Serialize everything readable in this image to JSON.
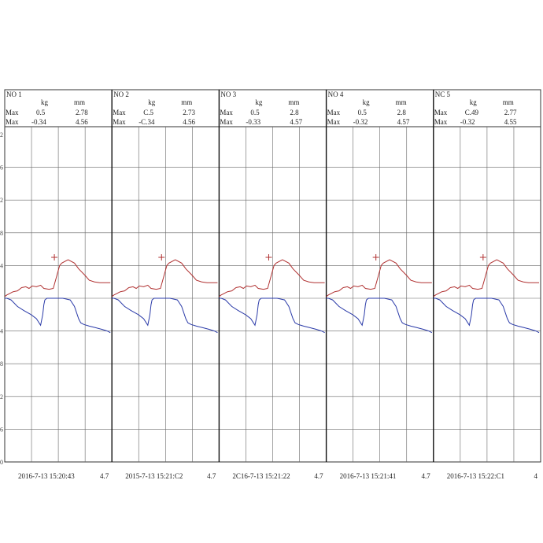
{
  "chart_data": {
    "type": "line",
    "col_headers": {
      "force_unit": "kg",
      "disp_unit": "mm"
    },
    "row_labels": {
      "max": "Max",
      "min": "Max"
    },
    "y_tick_labels": [
      "2",
      "6",
      "2",
      "8",
      "4",
      "",
      "4",
      "8",
      "2",
      "6",
      "0"
    ],
    "panels": [
      {
        "label": "NO 1",
        "max_kg": "0.5",
        "max_mm": "2.78",
        "min_kg": "-0.34",
        "min_mm": "4.56",
        "timestamp": "2016-7-13 15:20:43",
        "footer_value": "4.7"
      },
      {
        "label": "NO 2",
        "max_kg": "C.5",
        "max_mm": "2.73",
        "min_kg": "-C.34",
        "min_mm": "4.56",
        "timestamp": "2015-7-13 15:21:C2",
        "footer_value": "4.7"
      },
      {
        "label": "NO 3",
        "max_kg": "0.5",
        "max_mm": "2.8",
        "min_kg": "-0.33",
        "min_mm": "4.57",
        "timestamp": "2C16-7-13 15:21:22",
        "footer_value": "4.7"
      },
      {
        "label": "NO 4",
        "max_kg": "0.5",
        "max_mm": "2.8",
        "min_kg": "-0.32",
        "min_mm": "4.57",
        "timestamp": "2016-7-13 15:21:41",
        "footer_value": "4.7"
      },
      {
        "label": "NC 5",
        "max_kg": "C.49",
        "max_mm": "2.77",
        "min_kg": "-0.32",
        "min_mm": "4.55",
        "timestamp": "2016-7-13 15:22:C1",
        "footer_value": "4"
      }
    ],
    "series": [
      {
        "color": "#b03030",
        "x": [
          0,
          0.02,
          0.08,
          0.12,
          0.16,
          0.2,
          0.23,
          0.26,
          0.3,
          0.34,
          0.37,
          0.42,
          0.46,
          0.52,
          0.54,
          0.6,
          0.66,
          0.7,
          0.76,
          0.8,
          0.85,
          0.9,
          0.95,
          1
        ],
        "values": [
          0.02,
          0.04,
          0.08,
          0.09,
          0.13,
          0.14,
          0.12,
          0.15,
          0.14,
          0.16,
          0.12,
          0.11,
          0.12,
          0.4,
          0.43,
          0.47,
          0.43,
          0.36,
          0.28,
          0.22,
          0.2,
          0.19,
          0.19,
          0.19
        ]
      },
      {
        "color": "#2a3aa8",
        "x": [
          0,
          0.02,
          0.06,
          0.12,
          0.18,
          0.25,
          0.3,
          0.34,
          0.36,
          0.37,
          0.38,
          0.4,
          0.46,
          0.5,
          0.55,
          0.62,
          0.66,
          0.7,
          0.72,
          0.75,
          0.8,
          0.86,
          0.92,
          0.97,
          1
        ],
        "values": [
          0.0,
          0.0,
          -0.02,
          -0.1,
          -0.15,
          -0.2,
          -0.25,
          -0.33,
          -0.2,
          -0.08,
          -0.02,
          0.0,
          0.0,
          0.0,
          0.0,
          -0.02,
          -0.1,
          -0.25,
          -0.3,
          -0.32,
          -0.34,
          -0.36,
          -0.38,
          -0.4,
          -0.42
        ]
      }
    ],
    "peak_marker": {
      "x": 0.47,
      "value": 0.5
    },
    "ylim": [
      -2.0,
      2.0
    ],
    "grid": true
  }
}
